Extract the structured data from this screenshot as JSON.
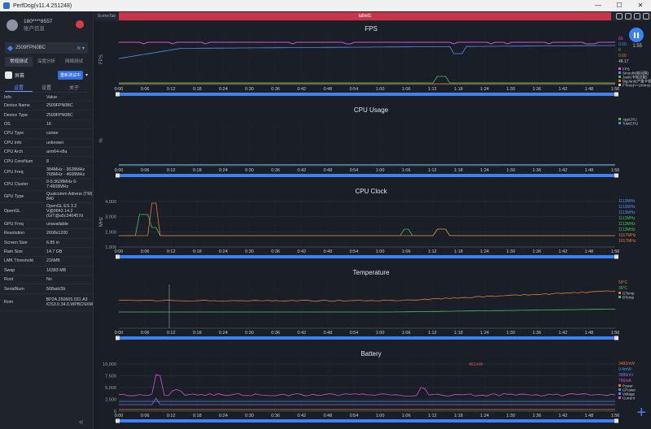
{
  "window": {
    "title": "PerfDog(v11.4.251248)"
  },
  "user": {
    "name": "180****8557",
    "status": "账户信息"
  },
  "device": {
    "name": "2509FPN0BC"
  },
  "modes": [
    "常规测试",
    "深度分析",
    "网络测试"
  ],
  "app": {
    "name": "屏幕",
    "button": "重新测试中"
  },
  "panel_tabs": [
    "设置",
    "设置",
    "关于"
  ],
  "info": {
    "col_info": "Info",
    "col_value": "Value",
    "rows": [
      {
        "k": "Device Name",
        "v": "2509FPN0BC"
      },
      {
        "k": "Device Type",
        "v": "2509FPN0BC"
      },
      {
        "k": "OS",
        "v": "16"
      },
      {
        "k": "CPU Type",
        "v": "canoe"
      },
      {
        "k": "CPU Info",
        "v": "unknown"
      },
      {
        "k": "CPU Arch",
        "v": "arm64-v8a"
      },
      {
        "k": "CPU CoreNum",
        "v": "8"
      },
      {
        "k": "CPU Freq",
        "v": "384MHz - 3628MHz 768MHz - 4608MHz"
      },
      {
        "k": "CPU Cluster",
        "v": "0-5:3628MHz 6-7:4608MHz"
      },
      {
        "k": "GPU Type",
        "v": "Qualcomm Adreno (TM) 840"
      },
      {
        "k": "OpenGL",
        "v": "OpenGL ES 3.2 V@0842.14.2 (GIT@a5c340457d"
      },
      {
        "k": "GPU Freq",
        "v": "unavailable"
      },
      {
        "k": "Resolution",
        "v": "2608x1200"
      },
      {
        "k": "Screen Size",
        "v": "6.85 in"
      },
      {
        "k": "Ram Size",
        "v": "14.7 GB"
      },
      {
        "k": "LMK Threshold",
        "v": "216MB"
      },
      {
        "k": "Swap",
        "v": "16383 MB"
      },
      {
        "k": "Root",
        "v": "No"
      },
      {
        "k": "SerialNum",
        "v": "568adc5b"
      },
      {
        "k": "Rom",
        "v": "BP2A.250605.031.A3 /OS3.0.34.0.WPBCNXM"
      }
    ]
  },
  "topbar": {
    "scene_tab": "SceneTab",
    "label": "label1"
  },
  "timer": "1:55",
  "time_ticks": [
    "0:00",
    "0:06",
    "0:12",
    "0:18",
    "0:24",
    "0:30",
    "0:36",
    "0:42",
    "0:48",
    "0:54",
    "1:00",
    "1:06",
    "1:12",
    "1:18",
    "1:24",
    "1:30",
    "1:36",
    "1:42",
    "1:48",
    "1:56"
  ],
  "chart_data": [
    {
      "type": "line",
      "title": "FPS",
      "ylabel": "FPS",
      "yticks": [],
      "legend": [
        "FPS",
        "Smooth(帧间隔)",
        "Jank(卡顿次数)",
        "BigJank(严重卡顿)",
        "FTime(>=100ms)"
      ],
      "values_right": [
        "60",
        "0.00",
        "0",
        "0.00",
        "48.17"
      ],
      "series_colors": [
        "#d94fd2",
        "#4e8ff0",
        "#4bbf58",
        "#e07a3c",
        "#c9c9c9"
      ]
    },
    {
      "type": "line",
      "title": "CPU Usage",
      "ylabel": "%",
      "yticks": [],
      "legend": [
        "AppCPU",
        "TotalCPU"
      ],
      "values_right": []
    },
    {
      "type": "line",
      "title": "CPU Clock",
      "ylabel": "MHz",
      "yticks": [
        "4,000",
        "3,000",
        "2,000",
        "1,000"
      ],
      "legend": [],
      "values_right": [
        "1113MHz",
        "1113MHz",
        "1113MHz",
        "1113MHz",
        "1113MHz",
        "1113MHz",
        "1017MHz",
        "1017MHz"
      ]
    },
    {
      "type": "line",
      "title": "Temperature",
      "ylabel": "",
      "yticks": [],
      "legend": [
        "GTemp",
        "BTemp"
      ],
      "values_right": [
        "59°C",
        "36°C"
      ]
    },
    {
      "type": "line",
      "title": "Battery",
      "ylabel": "",
      "yticks": [
        "10,000",
        "7,500",
        "5,000",
        "2,500",
        "0"
      ],
      "legend": [
        "Power",
        "CPower",
        "Voltage",
        "Current"
      ],
      "values_right": [
        "3482mW",
        "0.4mW",
        "3986mV",
        "766mA"
      ],
      "annotation": "461mW"
    }
  ]
}
